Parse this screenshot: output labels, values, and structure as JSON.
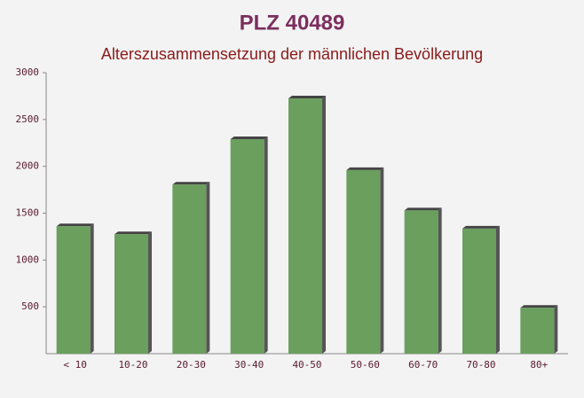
{
  "chart_data": {
    "type": "bar",
    "title": "PLZ 40489",
    "subtitle": "Alterszusammensetzung der männlichen Bevölkerung",
    "categories": [
      "< 10",
      "10-20",
      "20-30",
      "30-40",
      "40-50",
      "50-60",
      "60-70",
      "70-80",
      "80+"
    ],
    "values": [
      1360,
      1275,
      1805,
      2290,
      2725,
      1960,
      1530,
      1335,
      490
    ],
    "color": "#6a9f5e",
    "ylim": [
      0,
      3000
    ],
    "yticks": [
      500,
      1000,
      1500,
      2000,
      2500,
      3000
    ],
    "grid": false
  }
}
